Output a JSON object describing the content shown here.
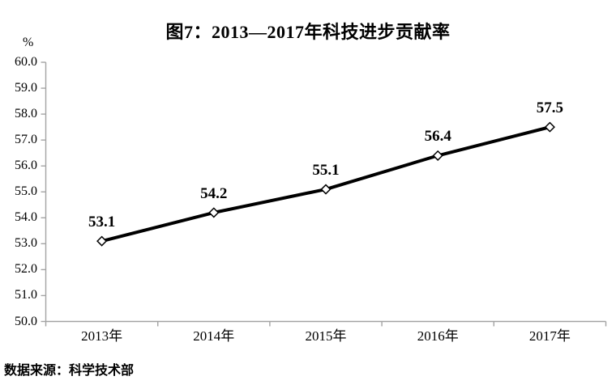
{
  "figure_label": "图7",
  "chart_data": {
    "type": "line",
    "title": "图7：2013—2017年科技进步贡献率",
    "categories": [
      "2013年",
      "2014年",
      "2015年",
      "2016年",
      "2017年"
    ],
    "values": [
      53.1,
      54.2,
      55.1,
      56.4,
      57.5
    ],
    "data_labels": [
      "53.1",
      "54.2",
      "55.1",
      "56.4",
      "57.5"
    ],
    "series_name": "科技进步贡献率",
    "xlabel": "",
    "ylabel": "%",
    "ylim": [
      50.0,
      60.0
    ],
    "ytick_step": 1.0,
    "ytick_labels": [
      "60.0",
      "59.0",
      "58.0",
      "57.0",
      "56.0",
      "55.0",
      "54.0",
      "53.0",
      "52.0",
      "51.0",
      "50.0"
    ],
    "grid": false,
    "legend_position": "none",
    "line_color": "#000000",
    "marker_style": "diamond-white-fill-black-outline",
    "axis_color": "#a3a3a3",
    "source_note": "数据来源：科学技术部"
  }
}
